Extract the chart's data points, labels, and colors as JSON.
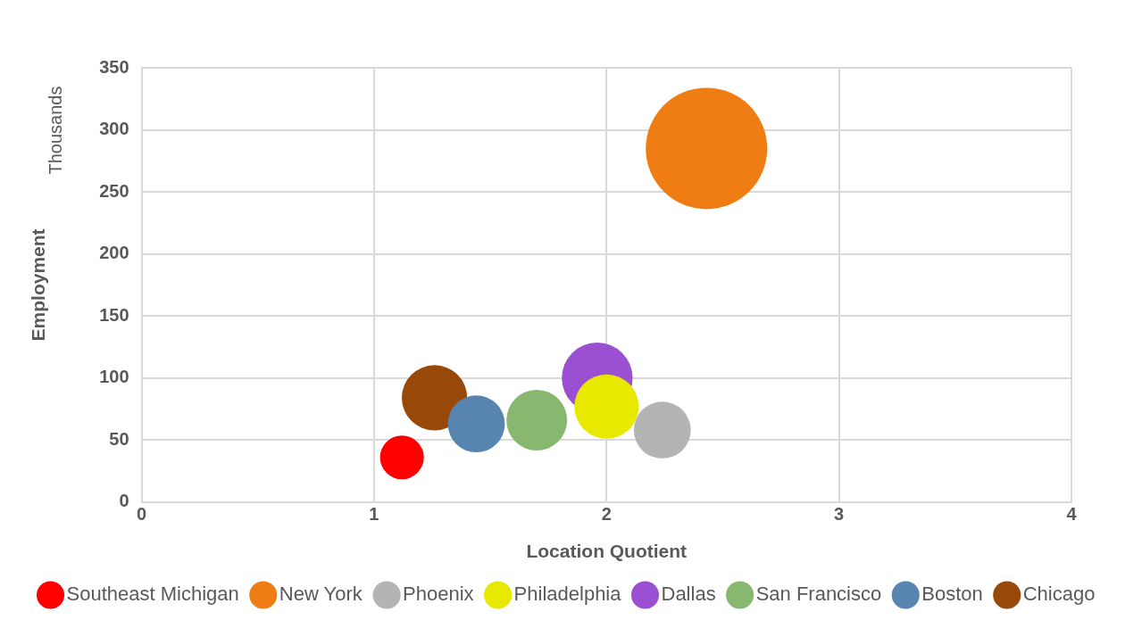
{
  "chart_data": {
    "type": "bubble",
    "xlabel": "Location Quotient",
    "ylabel": "Employment",
    "annotations": [
      "Thousands"
    ],
    "xlim": [
      0,
      4
    ],
    "xticks": [
      0,
      1,
      2,
      3,
      4
    ],
    "ylim": [
      0,
      350
    ],
    "yticks": [
      0,
      50,
      100,
      150,
      200,
      250,
      300,
      350
    ],
    "grid": true,
    "legend": "bottom",
    "series": [
      {
        "name": "Southeast Michigan",
        "color": "#ff0000",
        "x": [
          1.12
        ],
        "values": [
          36
        ],
        "sizes": [
          0.13
        ]
      },
      {
        "name": "New York",
        "color": "#f07c14",
        "x": [
          2.43
        ],
        "values": [
          285
        ],
        "sizes": [
          1
        ]
      },
      {
        "name": "Phoenix",
        "color": "#b4b4b4",
        "x": [
          2.24
        ],
        "values": [
          58
        ],
        "sizes": [
          0.22
        ]
      },
      {
        "name": "Philadelphia",
        "color": "#e8e800",
        "x": [
          2.0
        ],
        "values": [
          77
        ],
        "sizes": [
          0.28
        ]
      },
      {
        "name": "Dallas",
        "color": "#9a50d0",
        "x": [
          1.96
        ],
        "values": [
          100
        ],
        "sizes": [
          0.34
        ]
      },
      {
        "name": "San Francisco",
        "color": "#88b870",
        "x": [
          1.7
        ],
        "values": [
          66
        ],
        "sizes": [
          0.25
        ]
      },
      {
        "name": "Boston",
        "color": "#5884b0",
        "x": [
          1.44
        ],
        "values": [
          63
        ],
        "sizes": [
          0.22
        ]
      },
      {
        "name": "Chicago",
        "color": "#984808",
        "x": [
          1.26
        ],
        "values": [
          84
        ],
        "sizes": [
          0.29
        ]
      }
    ]
  }
}
